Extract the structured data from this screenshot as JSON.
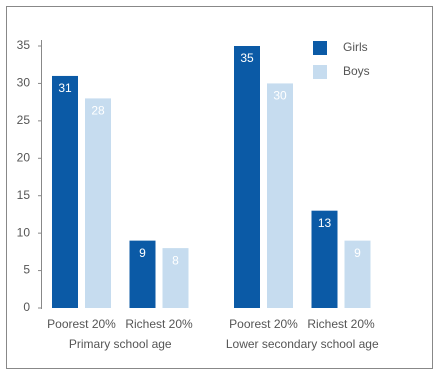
{
  "chart_data": {
    "type": "bar",
    "categories": [
      "Poorest 20%",
      "Richest 20%",
      "Poorest 20%",
      "Richest 20%"
    ],
    "groups": [
      "Primary school age",
      "Lower secondary school age"
    ],
    "series": [
      {
        "name": "Girls",
        "color": "#0b5aa6",
        "values": [
          31,
          9,
          35,
          13
        ]
      },
      {
        "name": "Boys",
        "color": "#c6dcef",
        "values": [
          28,
          8,
          30,
          9
        ]
      }
    ],
    "ylim": [
      0,
      35
    ],
    "yticks": [
      0,
      5,
      10,
      15,
      20,
      25,
      30,
      35
    ],
    "grid": false,
    "legend": "top-right"
  }
}
